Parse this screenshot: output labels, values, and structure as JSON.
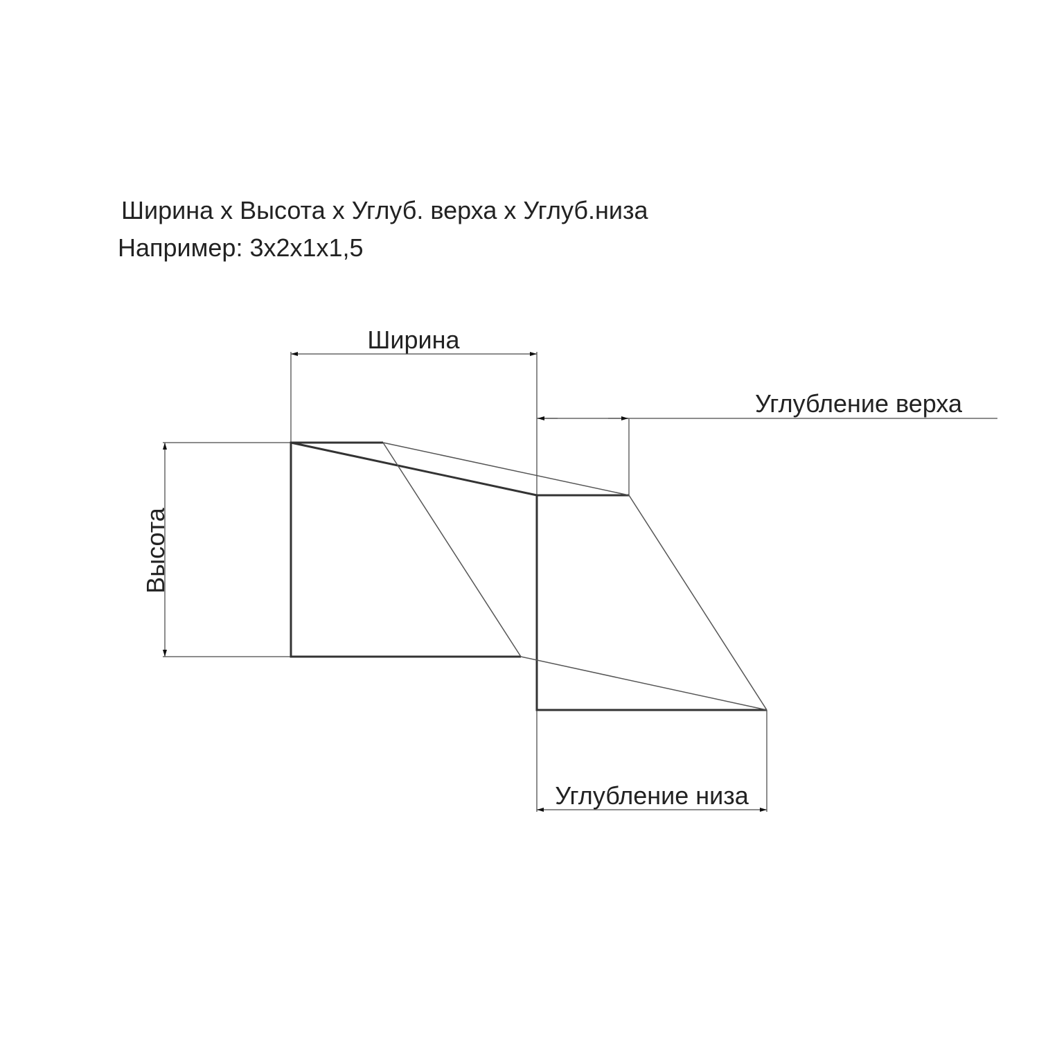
{
  "header": {
    "formula": "Ширина х Высота х Углуб. верха х Углуб.низа",
    "example": "Например: 3х2х1х1,5"
  },
  "labels": {
    "width": "Ширина",
    "height": "Высота",
    "top_depth": "Углубление верха",
    "bottom_depth": "Углубление низа"
  },
  "colors": {
    "line": "#333333",
    "thin_line": "#666666",
    "text": "#222222"
  }
}
